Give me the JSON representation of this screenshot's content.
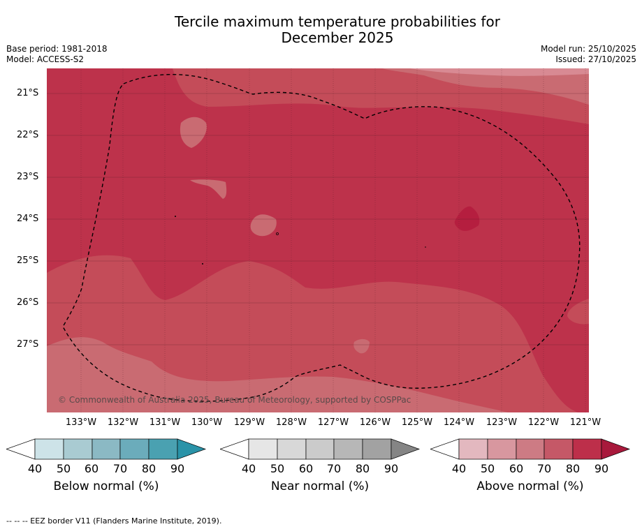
{
  "title_line1": "Tercile maximum temperature probabilities for",
  "title_line2": "December 2025",
  "base_period": "Base period: 1981-2018",
  "model": "Model: ACCESS-S2",
  "model_run": "Model run: 25/10/2025",
  "issued": "Issued: 27/10/2025",
  "lat_labels": [
    "21°S",
    "22°S",
    "23°S",
    "24°S",
    "25°S",
    "26°S",
    "27°S"
  ],
  "lon_labels": [
    "133°W",
    "132°W",
    "131°W",
    "130°W",
    "129°W",
    "128°W",
    "127°W",
    "126°W",
    "125°W",
    "124°W",
    "123°W",
    "122°W",
    "121°W"
  ],
  "copyright": "© Commonwealth of Australia 2025, Bureau of Meteorology, supported by COSPPac",
  "footnote": "--  --  -- EEZ border V11 (Flanders Marine Institute, 2019).",
  "colorbars": [
    {
      "title": "Below normal (%)",
      "ticks": [
        "40",
        "50",
        "60",
        "70",
        "80",
        "90"
      ],
      "colors": [
        "#ffffff",
        "#cde3e8",
        "#a9cbd2",
        "#8bb9c4",
        "#6bacbb",
        "#4aa1b1",
        "#2a93a8"
      ]
    },
    {
      "title": "Near normal (%)",
      "ticks": [
        "40",
        "50",
        "60",
        "70",
        "80",
        "90"
      ],
      "colors": [
        "#ffffff",
        "#e6e6e6",
        "#d8d8d8",
        "#cbcbcb",
        "#b7b7b7",
        "#a2a2a2",
        "#858585"
      ]
    },
    {
      "title": "Above normal (%)",
      "ticks": [
        "40",
        "50",
        "60",
        "70",
        "80",
        "90"
      ],
      "colors": [
        "#ffffff",
        "#e3b8bf",
        "#d8979f",
        "#cd7b84",
        "#c55867",
        "#bd2f4a",
        "#a8193c"
      ]
    }
  ],
  "colors": {
    "c90": "#b51e3f",
    "c80": "#bd324b",
    "c70": "#c44c59",
    "c60": "#c96b72",
    "c50": "#d88a93",
    "eez": "#000000"
  }
}
